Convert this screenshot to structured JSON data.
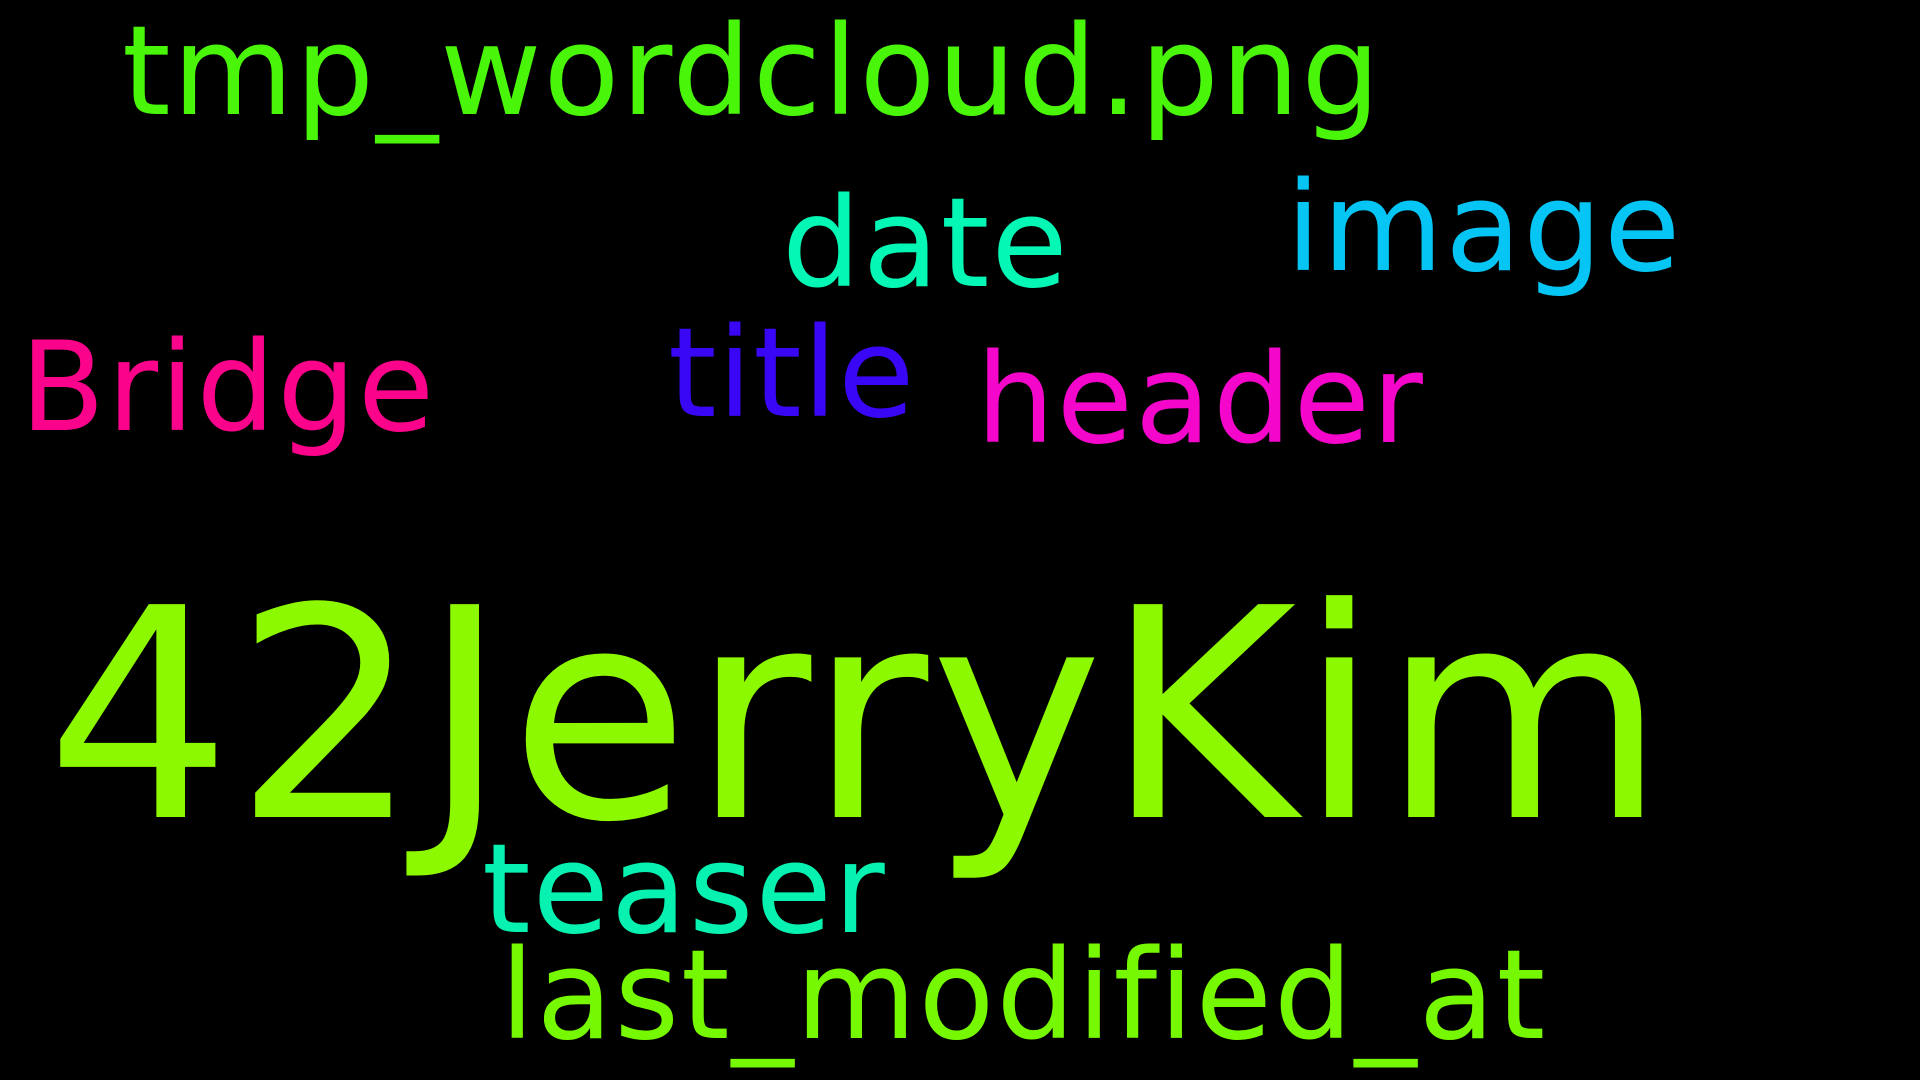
{
  "background_color": "#000000",
  "words": [
    {
      "key": "tmp_wordcloud_png",
      "text": "tmp_wordcloud.png",
      "color": "#49f60a"
    },
    {
      "key": "date",
      "text": "date",
      "color": "#04f7b4"
    },
    {
      "key": "image",
      "text": "image",
      "color": "#05c5f5"
    },
    {
      "key": "bridge",
      "text": "Bridge",
      "color": "#fb038b"
    },
    {
      "key": "title",
      "text": "title",
      "color": "#3a07f6"
    },
    {
      "key": "header",
      "text": "header",
      "color": "#f406cb"
    },
    {
      "key": "42jerrykim",
      "text": "42JerryKim",
      "color": "#8df900"
    },
    {
      "key": "teaser",
      "text": "teaser",
      "color": "#07f1b0"
    },
    {
      "key": "last_modified_at",
      "text": "last_modified_at",
      "color": "#76f802"
    }
  ]
}
